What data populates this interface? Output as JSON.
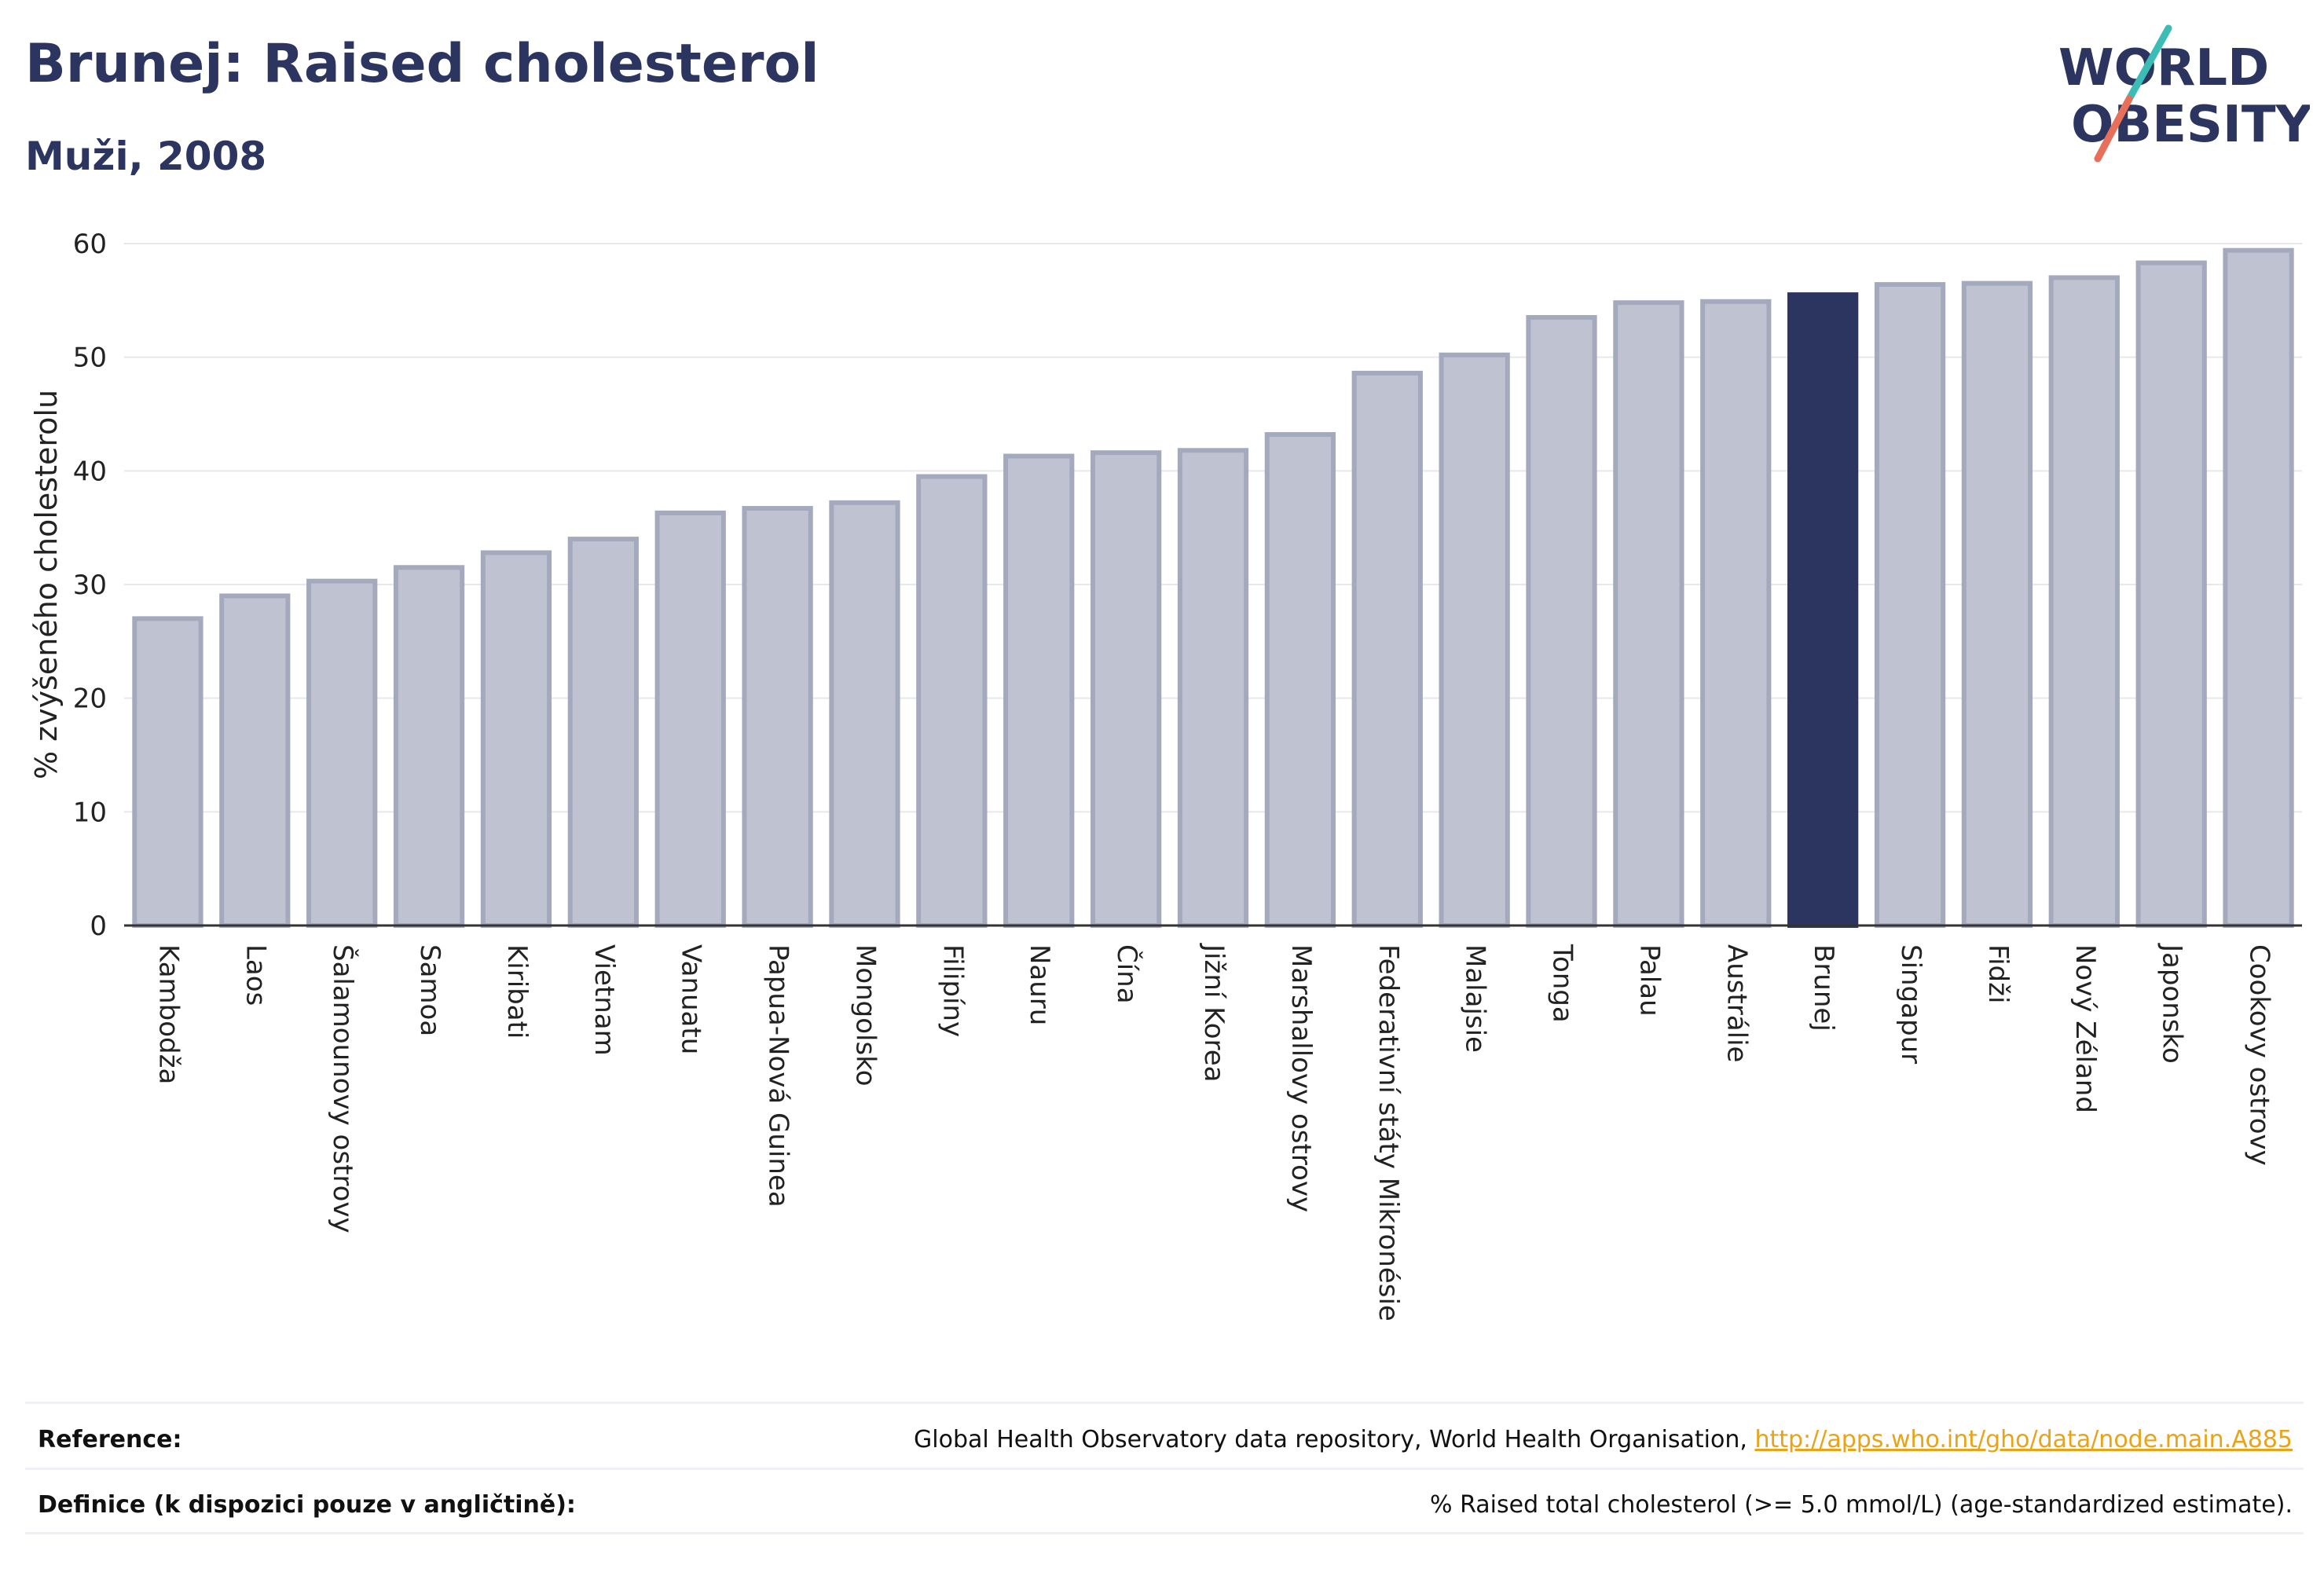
{
  "header": {
    "title": "Brunej: Raised cholesterol",
    "subtitle": "Muži, 2008",
    "logo_line1": "WORLD",
    "logo_line2": "OBESITY"
  },
  "colors": {
    "bar": "#bfc3d1",
    "bar_stroke": "#a4a9bd",
    "highlight": "#2b3560",
    "grid": "#e6e8ee",
    "axis": "#333333",
    "logo_teal": "#3bbdb6",
    "logo_coral": "#e8705b"
  },
  "chart_data": {
    "type": "bar",
    "ylabel": "% zvýšeného cholesterolu",
    "ylim": [
      0,
      60
    ],
    "yticks": [
      0,
      10,
      20,
      30,
      40,
      50,
      60
    ],
    "highlight": "Brunej",
    "categories": [
      "Kambodža",
      "Laos",
      "Šalamounovy ostrovy",
      "Samoa",
      "Kiribati",
      "Vietnam",
      "Vanuatu",
      "Papua-Nová Guinea",
      "Mongolsko",
      "Filipíny",
      "Nauru",
      "Čína",
      "Jižní Korea",
      "Marshallovy ostrovy",
      "Federativní státy Mikronésie",
      "Malajsie",
      "Tonga",
      "Palau",
      "Austrálie",
      "Brunej",
      "Singapur",
      "Fidži",
      "Nový Zéland",
      "Japonsko",
      "Cookovy ostrovy"
    ],
    "values": [
      27.0,
      29.0,
      30.3,
      31.5,
      32.8,
      34.0,
      36.3,
      36.7,
      37.2,
      39.5,
      41.3,
      41.6,
      41.8,
      43.2,
      48.6,
      50.2,
      53.5,
      54.8,
      54.9,
      55.5,
      56.4,
      56.5,
      57.0,
      58.3,
      59.4
    ]
  },
  "footer": {
    "reference_label": "Reference:",
    "reference_text": "Global Health Observatory data repository, World Health Organisation, ",
    "reference_link": "http://apps.who.int/gho/data/node.main.A885",
    "definition_label": "Definice (k dispozici pouze v angličtině):",
    "definition_text": "% Raised total cholesterol (>= 5.0 mmol/L) (age-standardized estimate)."
  }
}
